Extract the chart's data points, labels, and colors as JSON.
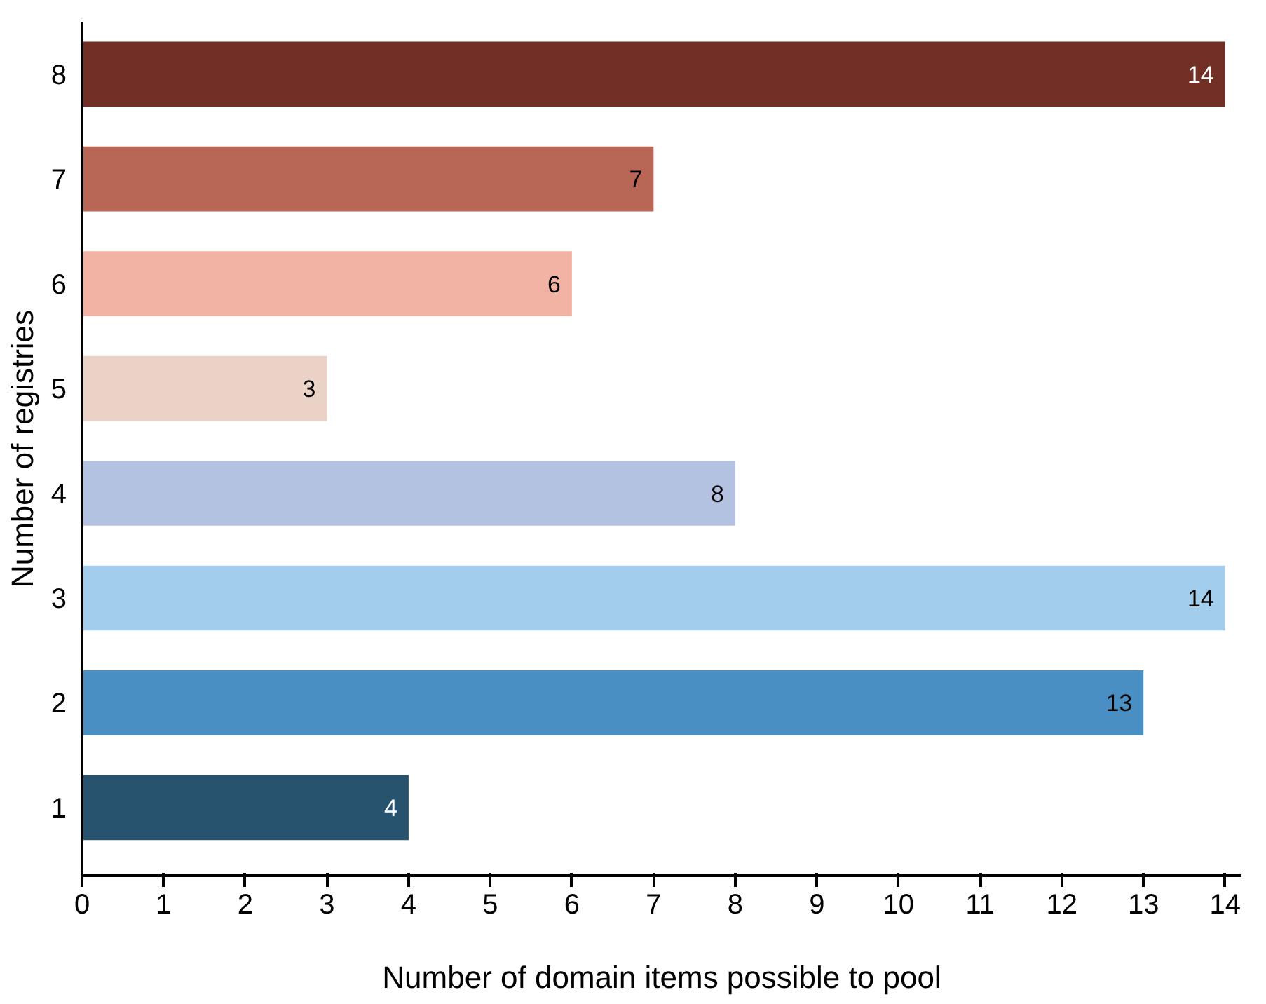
{
  "chart_data": {
    "type": "bar",
    "orientation": "horizontal",
    "xlabel": "Number of domain items possible to pool",
    "ylabel": "Number of registries",
    "categories": [
      "8",
      "7",
      "6",
      "5",
      "4",
      "3",
      "2",
      "1"
    ],
    "values": [
      14,
      7,
      6,
      3,
      8,
      14,
      13,
      4
    ],
    "colors": [
      "#722f26",
      "#b86656",
      "#f2b3a5",
      "#ebd2c6",
      "#b4c2e2",
      "#a3cdec",
      "#4a8fc3",
      "#27536f"
    ],
    "xlim": [
      0,
      14.2
    ],
    "xticks": [
      0,
      1,
      2,
      3,
      4,
      5,
      6,
      7,
      8,
      9,
      10,
      11,
      12,
      13,
      14
    ],
    "data_labels": true,
    "grid": false
  }
}
